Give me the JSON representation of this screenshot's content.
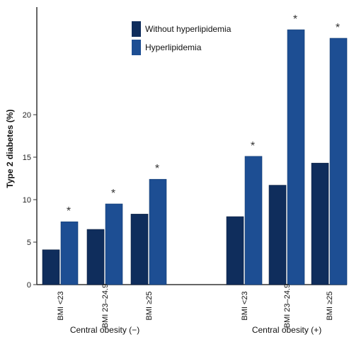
{
  "chart_data": {
    "type": "bar",
    "ylabel": "Type 2 diabetes (%)",
    "ylim": [
      0,
      32
    ],
    "yticks": [
      0,
      5,
      10,
      15,
      20
    ],
    "yticks_display": [
      "0",
      "5",
      "10",
      "15",
      "20"
    ],
    "groups": [
      {
        "label": "Central obesity (−)",
        "categories": [
          "BMI <23",
          "BMI 23–24.9",
          "BMI ≥25"
        ]
      },
      {
        "label": "Central obesity (+)",
        "categories": [
          "BMI <23",
          "BMI 23–24.9",
          "BMI ≥25"
        ]
      }
    ],
    "series": [
      {
        "name": "Without hyperlipidemia",
        "color": "#0f2d5c",
        "values": [
          4.1,
          6.5,
          8.3,
          8.0,
          11.7,
          14.3
        ]
      },
      {
        "name": "Hyperlipidemia",
        "color": "#1d4e93",
        "values": [
          7.4,
          9.5,
          12.4,
          15.1,
          30.0,
          29.0
        ]
      }
    ],
    "annotations": [
      "*",
      "*",
      "*",
      "*",
      "*",
      "*"
    ],
    "legend_position": "top-center",
    "grid": false
  }
}
